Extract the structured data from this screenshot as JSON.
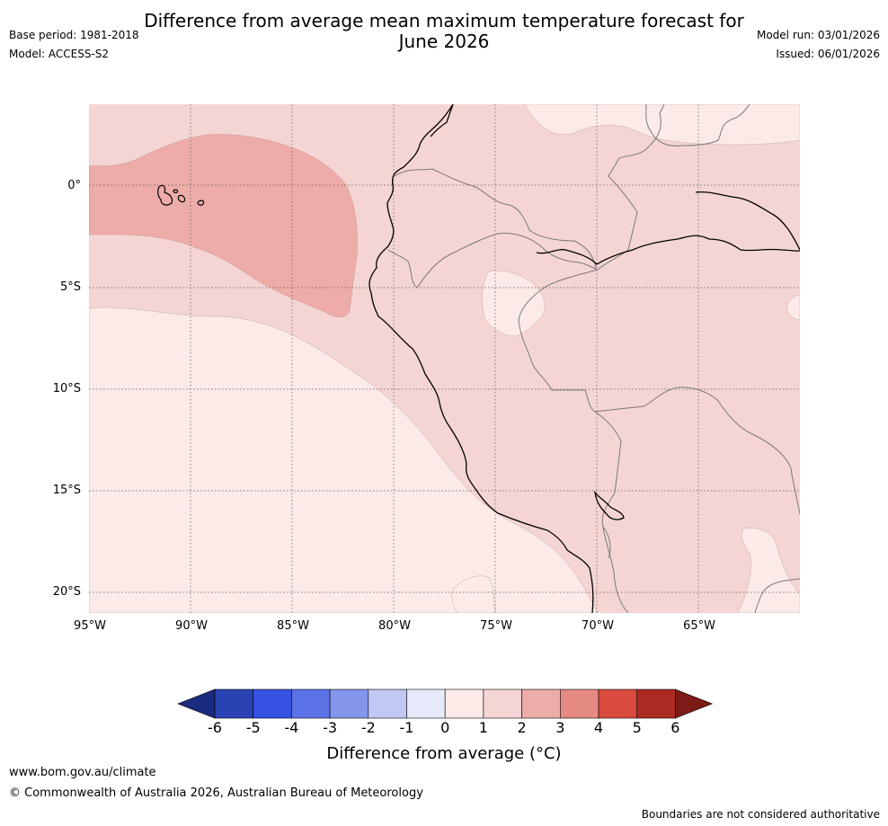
{
  "title_line1": "Difference from average mean maximum temperature forecast for",
  "title_line2": "June 2026",
  "base_period": "Base period: 1981-2018",
  "model": "Model: ACCESS-S2",
  "model_run": "Model run: 03/01/2026",
  "issued": "Issued: 06/01/2026",
  "lat_labels": [
    "0°",
    "5°S",
    "10°S",
    "15°S",
    "20°S"
  ],
  "lon_labels": [
    "95°W",
    "90°W",
    "85°W",
    "80°W",
    "75°W",
    "70°W",
    "65°W"
  ],
  "colorbar": {
    "ticks": [
      "-6",
      "-5",
      "-4",
      "-3",
      "-2",
      "-1",
      "0",
      "1",
      "2",
      "3",
      "4",
      "5",
      "6"
    ],
    "colors": [
      "#1b2b7e",
      "#2a43b4",
      "#3552e0",
      "#5b72e6",
      "#8496ec",
      "#c0c8f4",
      "#e7eafa",
      "#fbeae8",
      "#f5d5d3",
      "#edaca8",
      "#e58a82",
      "#da4a3f",
      "#ad2a22",
      "#7d1c17"
    ],
    "title": "Difference from average (°C)"
  },
  "legend_colors": {
    "anom_0_1": "#fbeae8",
    "anom_1_2": "#f5d5d3",
    "anom_2_3": "#edaca8",
    "coast": "#000000",
    "border": "#7a7a7a",
    "grid": "#555555"
  },
  "footer": {
    "website": "www.bom.gov.au/climate",
    "copyright": "© Commonwealth of Australia 2026, Australian Bureau of Meteorology",
    "disclaimer": "Boundaries are not considered authoritative"
  }
}
